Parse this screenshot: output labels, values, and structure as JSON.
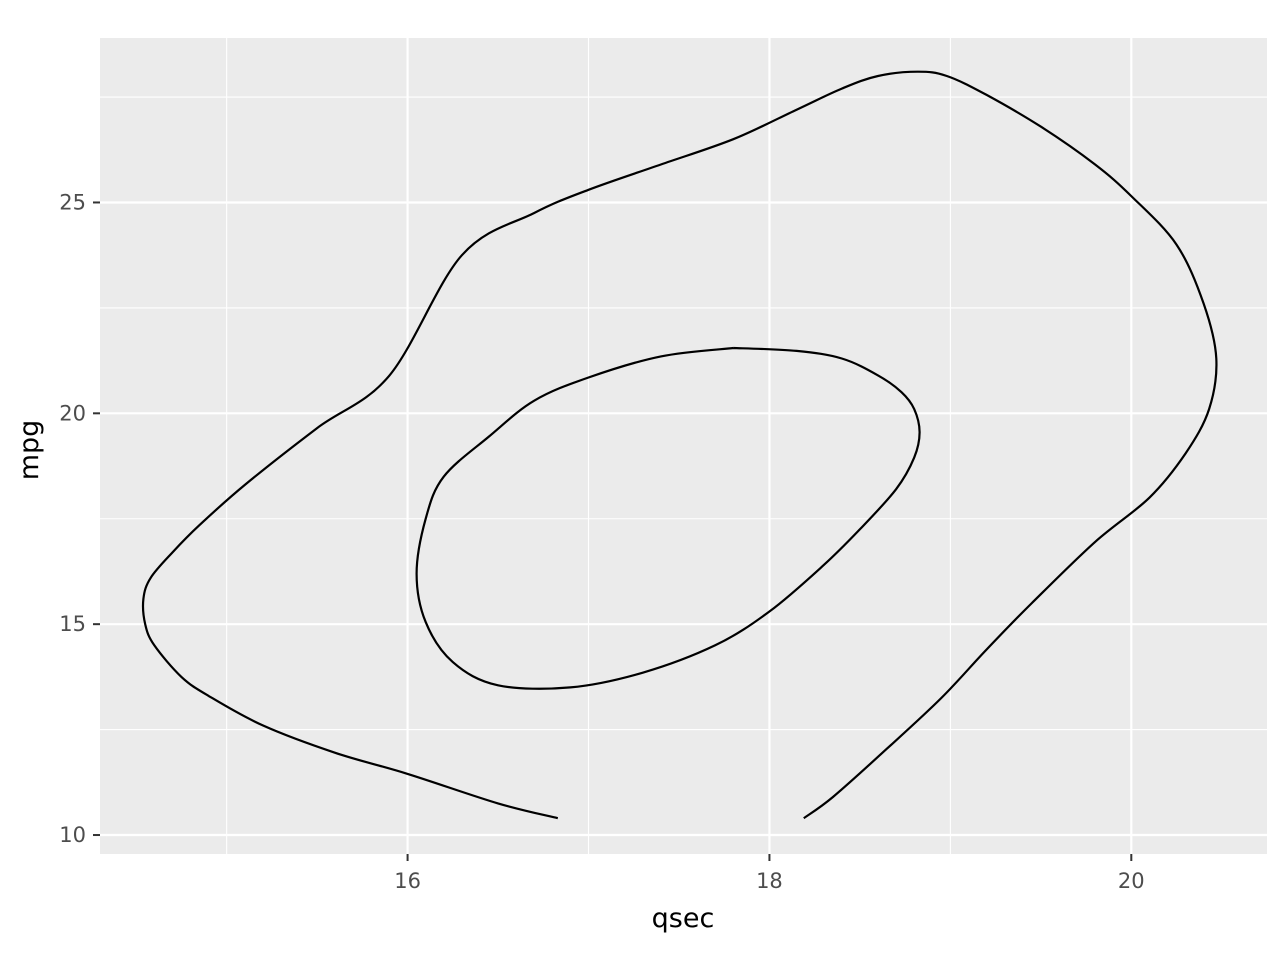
{
  "chart_data": {
    "type": "line",
    "title": "",
    "xlabel": "qsec",
    "ylabel": "mpg",
    "xlim": [
      14.3,
      20.75
    ],
    "ylim": [
      9.55,
      28.9
    ],
    "x_major_ticks": [
      16,
      18,
      20
    ],
    "x_minor_ticks": [
      15,
      17,
      19
    ],
    "y_major_ticks": [
      10,
      15,
      20,
      25
    ],
    "y_minor_ticks": [
      12.5,
      17.5,
      22.5,
      27.5
    ],
    "x_tick_labels": [
      "16",
      "18",
      "20"
    ],
    "y_tick_labels": [
      "10",
      "15",
      "20",
      "25"
    ],
    "grid": true,
    "legend": "none",
    "colors": {
      "panel_background": "#ebebeb",
      "grid": "#ffffff",
      "line": "#000000",
      "tick_label": "#4d4d4d"
    },
    "series": [
      {
        "points": [
          [
            16.83,
            10.4
          ],
          [
            16.5,
            10.75
          ],
          [
            16.0,
            11.45
          ],
          [
            15.6,
            11.95
          ],
          [
            15.2,
            12.6
          ],
          [
            14.9,
            13.3
          ],
          [
            14.75,
            13.75
          ],
          [
            14.6,
            14.5
          ],
          [
            14.55,
            15.0
          ],
          [
            14.54,
            15.6
          ],
          [
            14.58,
            16.1
          ],
          [
            14.7,
            16.7
          ],
          [
            14.85,
            17.35
          ],
          [
            15.1,
            18.3
          ],
          [
            15.5,
            19.65
          ],
          [
            15.9,
            20.9
          ],
          [
            16.3,
            23.75
          ],
          [
            16.7,
            24.75
          ],
          [
            17.0,
            25.3
          ],
          [
            17.4,
            25.9
          ],
          [
            17.8,
            26.5
          ],
          [
            18.15,
            27.2
          ],
          [
            18.4,
            27.7
          ],
          [
            18.6,
            28.0
          ],
          [
            18.82,
            28.1
          ],
          [
            18.98,
            28.0
          ],
          [
            19.2,
            27.55
          ],
          [
            19.5,
            26.8
          ],
          [
            19.8,
            25.9
          ],
          [
            20.0,
            25.15
          ],
          [
            20.25,
            24.0
          ],
          [
            20.4,
            22.6
          ],
          [
            20.47,
            21.3
          ],
          [
            20.43,
            20.1
          ],
          [
            20.3,
            19.05
          ],
          [
            20.1,
            18.0
          ],
          [
            19.8,
            16.95
          ],
          [
            19.45,
            15.5
          ],
          [
            19.2,
            14.4
          ],
          [
            18.95,
            13.25
          ],
          [
            18.65,
            12.05
          ],
          [
            18.35,
            10.9
          ],
          [
            18.19,
            10.4
          ]
        ]
      },
      {
        "points": [
          [
            17.8,
            21.55
          ],
          [
            18.15,
            21.48
          ],
          [
            18.4,
            21.3
          ],
          [
            18.6,
            20.9
          ],
          [
            18.73,
            20.5
          ],
          [
            18.8,
            20.1
          ],
          [
            18.83,
            19.55
          ],
          [
            18.8,
            18.95
          ],
          [
            18.7,
            18.2
          ],
          [
            18.5,
            17.25
          ],
          [
            18.3,
            16.4
          ],
          [
            18.0,
            15.3
          ],
          [
            17.7,
            14.5
          ],
          [
            17.3,
            13.85
          ],
          [
            16.9,
            13.5
          ],
          [
            16.5,
            13.55
          ],
          [
            16.25,
            14.1
          ],
          [
            16.1,
            15.05
          ],
          [
            16.05,
            16.2
          ],
          [
            16.1,
            17.5
          ],
          [
            16.2,
            18.5
          ],
          [
            16.45,
            19.45
          ],
          [
            16.7,
            20.3
          ],
          [
            17.0,
            20.85
          ],
          [
            17.4,
            21.35
          ],
          [
            17.8,
            21.55
          ]
        ]
      }
    ]
  }
}
